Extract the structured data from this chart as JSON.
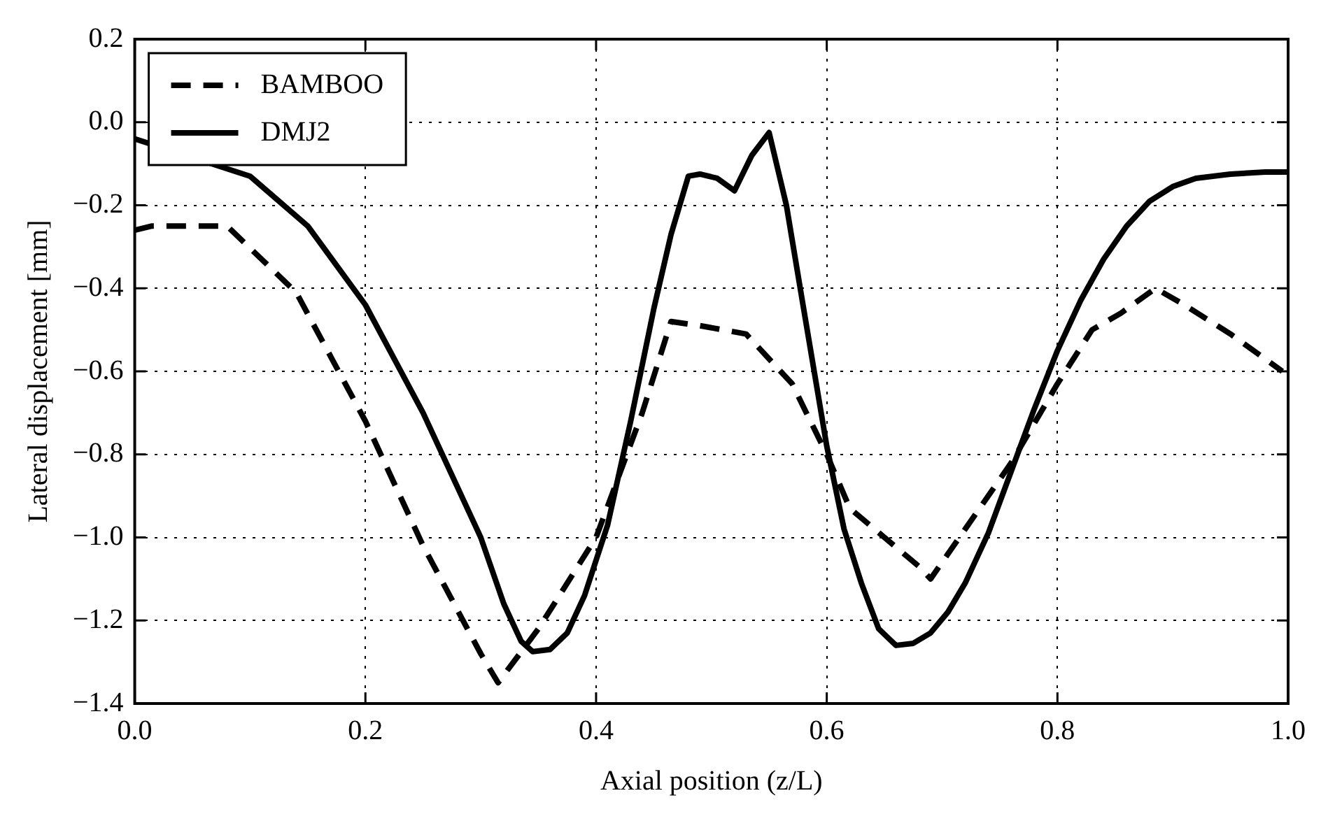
{
  "chart_data": {
    "type": "line",
    "xlabel": "Axial position (z/L)",
    "ylabel": "Lateral displacement [mm]",
    "xlim": [
      0,
      1
    ],
    "xticks": [
      {
        "value": 0,
        "label": "0.0"
      },
      0.2,
      0.4,
      0.6,
      0.8,
      {
        "value": 1,
        "label": "1.0"
      }
    ],
    "ylim": [
      -1.4,
      0.2
    ],
    "yticks": [
      {
        "value": -1.4,
        "label": "−1.4"
      },
      {
        "value": -1.2,
        "label": "−1.2"
      },
      {
        "value": -1,
        "label": "−1.0"
      },
      {
        "value": -0.8,
        "label": "−0.8"
      },
      {
        "value": -0.6,
        "label": "−0.6"
      },
      {
        "value": -0.4,
        "label": "−0.4"
      },
      {
        "value": -0.2,
        "label": "−0.2"
      },
      {
        "value": 0,
        "label": "0.0"
      },
      0.2
    ],
    "grid": true,
    "legend": "top left",
    "marker": "none",
    "series": [
      {
        "name": "BAMBOO",
        "color": "#000000",
        "line_style": "dashed",
        "x": [
          0,
          0.015,
          0.08,
          0.14,
          0.2,
          0.25,
          0.3,
          0.315,
          0.35,
          0.4,
          0.44,
          0.465,
          0.49,
          0.53,
          0.57,
          0.6,
          0.62,
          0.65,
          0.68,
          0.69,
          0.72,
          0.76,
          0.8,
          0.83,
          0.855,
          0.885,
          0.91,
          0.95,
          0.995
        ],
        "values": [
          -0.26,
          -0.25,
          -0.25,
          -0.41,
          -0.72,
          -1.02,
          -1.28,
          -1.35,
          -1.22,
          -1.0,
          -0.7,
          -0.48,
          -0.49,
          -0.51,
          -0.63,
          -0.8,
          -0.93,
          -1.0,
          -1.07,
          -1.1,
          -0.98,
          -0.82,
          -0.63,
          -0.5,
          -0.46,
          -0.4,
          -0.44,
          -0.51,
          -0.6
        ]
      },
      {
        "name": "DMJ2",
        "color": "#000000",
        "line_style": "solid",
        "x": [
          0,
          0.05,
          0.1,
          0.15,
          0.2,
          0.25,
          0.3,
          0.32,
          0.335,
          0.345,
          0.36,
          0.375,
          0.39,
          0.41,
          0.43,
          0.45,
          0.465,
          0.48,
          0.49,
          0.505,
          0.52,
          0.535,
          0.55,
          0.565,
          0.58,
          0.6,
          0.615,
          0.63,
          0.645,
          0.66,
          0.675,
          0.69,
          0.705,
          0.72,
          0.74,
          0.76,
          0.78,
          0.8,
          0.82,
          0.84,
          0.86,
          0.88,
          0.9,
          0.92,
          0.95,
          0.98,
          1.0
        ],
        "values": [
          -0.04,
          null,
          -0.13,
          -0.25,
          -0.44,
          -0.7,
          -1.0,
          -1.16,
          -1.25,
          -1.275,
          -1.27,
          -1.23,
          -1.14,
          -0.97,
          -0.72,
          -0.45,
          -0.27,
          -0.13,
          -0.125,
          -0.135,
          -0.165,
          -0.08,
          -0.025,
          -0.2,
          -0.45,
          -0.78,
          -0.98,
          -1.11,
          -1.22,
          -1.26,
          -1.255,
          -1.23,
          -1.18,
          -1.11,
          -0.99,
          -0.84,
          -0.69,
          -0.55,
          -0.43,
          -0.33,
          -0.25,
          -0.19,
          -0.155,
          -0.135,
          -0.125,
          -0.12,
          -0.12
        ]
      }
    ]
  }
}
